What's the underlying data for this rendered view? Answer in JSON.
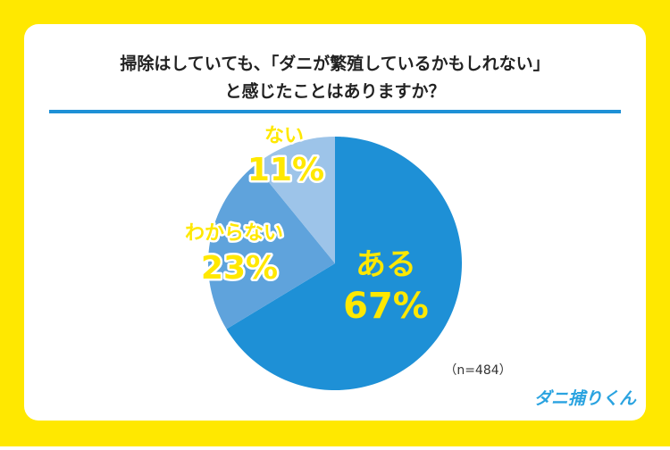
{
  "chart_data": {
    "type": "pie",
    "title": [
      "掃除はしていても、「ダニが繁殖しているかもしれない」",
      "と感じたことはありますか？"
    ],
    "categories": [
      "ある",
      "わからない",
      "ない"
    ],
    "values": [
      67,
      23,
      11
    ],
    "value_labels": [
      "67%",
      "23%",
      "11%"
    ],
    "colors": [
      "#1e90d6",
      "#5fa3dc",
      "#9dc4e9"
    ],
    "annotation": "（n=484）"
  },
  "brand": "ダニ捕りくん"
}
